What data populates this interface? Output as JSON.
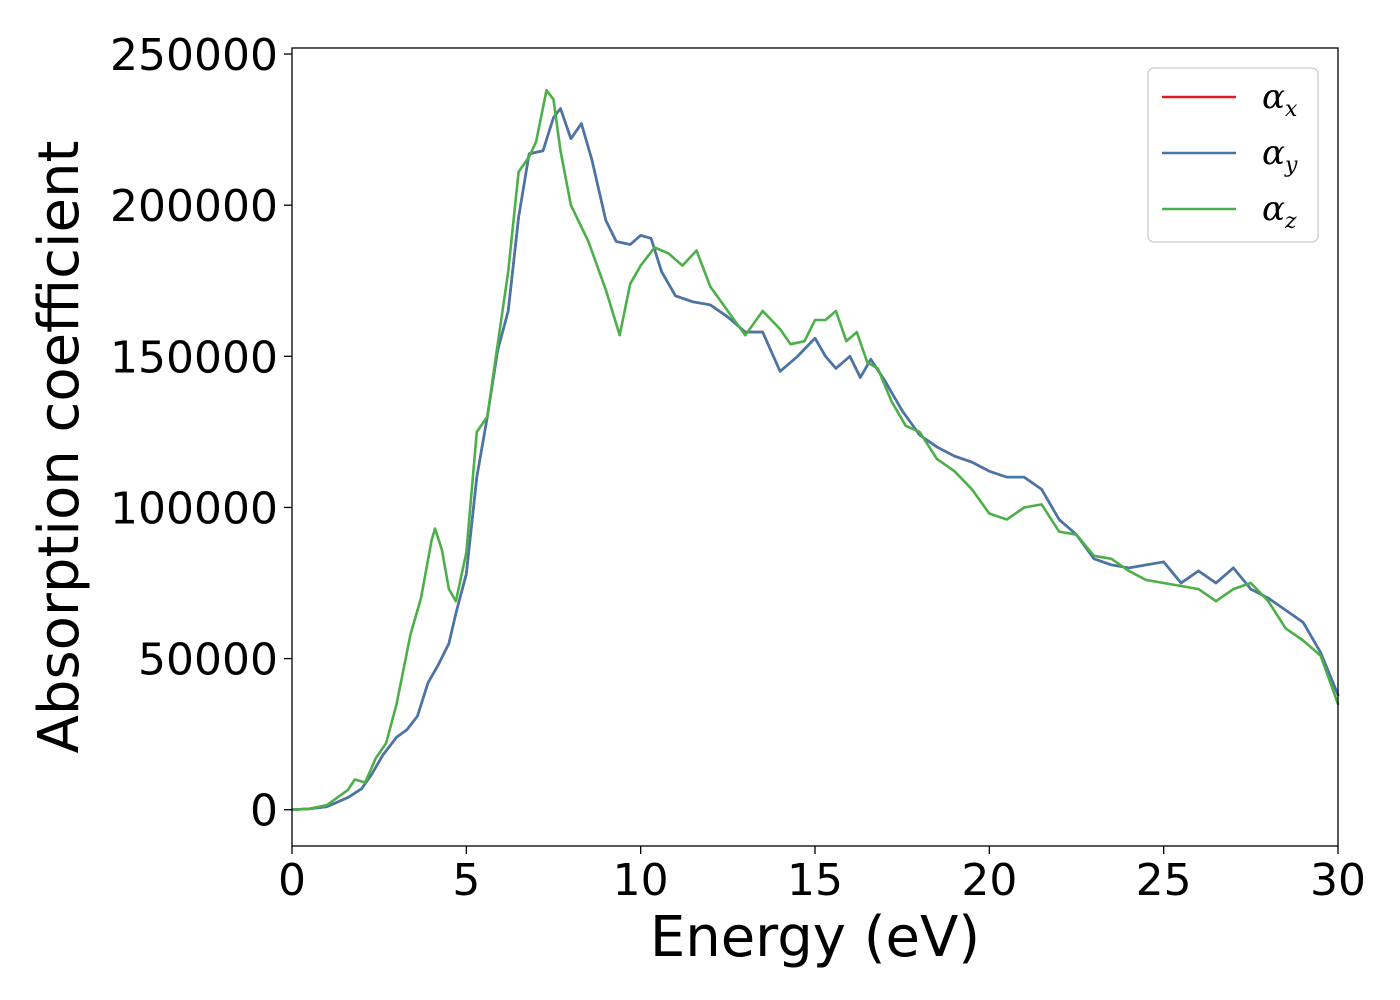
{
  "chart_data": {
    "type": "line",
    "xlabel": "Energy (eV)",
    "ylabel": "Absorption coefficient",
    "xlim": [
      0,
      30
    ],
    "ylim": [
      -12000,
      252000
    ],
    "xticks": [
      0,
      5,
      10,
      15,
      20,
      25,
      30
    ],
    "xtick_labels": [
      "0",
      "5",
      "10",
      "15",
      "20",
      "25",
      "30"
    ],
    "yticks": [
      0,
      50000,
      100000,
      150000,
      200000,
      250000
    ],
    "ytick_labels": [
      "0",
      "50000",
      "100000",
      "150000",
      "200000",
      "250000"
    ],
    "grid": false,
    "legend_position": "top-right",
    "series": [
      {
        "name": "α_x",
        "legend_main": "α",
        "legend_sub": "x",
        "color": "#e41a1c",
        "x": [
          0,
          0.5,
          1.0,
          1.3,
          1.6,
          2.0,
          2.3,
          2.6,
          3.0,
          3.3,
          3.6,
          3.9,
          4.2,
          4.5,
          4.7,
          5.0,
          5.3,
          5.6,
          5.9,
          6.2,
          6.5,
          6.8,
          7.2,
          7.5,
          7.7,
          8.0,
          8.3,
          8.6,
          9.0,
          9.3,
          9.7,
          10.0,
          10.3,
          10.6,
          11.0,
          11.5,
          12.0,
          12.5,
          13.0,
          13.5,
          14.0,
          14.5,
          15.0,
          15.3,
          15.6,
          16.0,
          16.3,
          16.6,
          17.0,
          17.5,
          18.0,
          18.5,
          19.0,
          19.5,
          20.0,
          20.5,
          21.0,
          21.5,
          22.0,
          22.5,
          23.0,
          23.5,
          24.0,
          24.5,
          25.0,
          25.5,
          26.0,
          26.5,
          27.0,
          27.5,
          28.0,
          28.5,
          29.0,
          29.5,
          30.0
        ],
        "y": [
          0,
          300,
          1000,
          2500,
          4000,
          7000,
          12000,
          18000,
          24000,
          26500,
          31000,
          42000,
          48000,
          55000,
          65000,
          78000,
          110000,
          130000,
          152000,
          165000,
          196000,
          217000,
          218000,
          229000,
          232000,
          222000,
          227000,
          215000,
          195000,
          188000,
          187000,
          190000,
          189000,
          178000,
          170000,
          168000,
          167000,
          163000,
          158000,
          158000,
          145000,
          150000,
          156000,
          150000,
          146000,
          150000,
          143000,
          149000,
          142000,
          132000,
          124000,
          120000,
          117000,
          115000,
          112000,
          110000,
          110000,
          106000,
          96000,
          91000,
          83000,
          81000,
          80000,
          81000,
          82000,
          75000,
          79000,
          75000,
          80000,
          73000,
          70000,
          66000,
          62000,
          52000,
          38000
        ]
      },
      {
        "name": "α_y",
        "legend_main": "α",
        "legend_sub": "y",
        "color": "#4477aa",
        "x": [
          0,
          0.5,
          1.0,
          1.3,
          1.6,
          2.0,
          2.3,
          2.6,
          3.0,
          3.3,
          3.6,
          3.9,
          4.2,
          4.5,
          4.7,
          5.0,
          5.3,
          5.6,
          5.9,
          6.2,
          6.5,
          6.8,
          7.2,
          7.5,
          7.7,
          8.0,
          8.3,
          8.6,
          9.0,
          9.3,
          9.7,
          10.0,
          10.3,
          10.6,
          11.0,
          11.5,
          12.0,
          12.5,
          13.0,
          13.5,
          14.0,
          14.5,
          15.0,
          15.3,
          15.6,
          16.0,
          16.3,
          16.6,
          17.0,
          17.5,
          18.0,
          18.5,
          19.0,
          19.5,
          20.0,
          20.5,
          21.0,
          21.5,
          22.0,
          22.5,
          23.0,
          23.5,
          24.0,
          24.5,
          25.0,
          25.5,
          26.0,
          26.5,
          27.0,
          27.5,
          28.0,
          28.5,
          29.0,
          29.5,
          30.0
        ],
        "y": [
          0,
          300,
          1000,
          2500,
          4000,
          7000,
          12000,
          18000,
          24000,
          26500,
          31000,
          42000,
          48000,
          55000,
          65000,
          78000,
          110000,
          130000,
          152000,
          165000,
          196000,
          217000,
          218000,
          229000,
          232000,
          222000,
          227000,
          215000,
          195000,
          188000,
          187000,
          190000,
          189000,
          178000,
          170000,
          168000,
          167000,
          163000,
          158000,
          158000,
          145000,
          150000,
          156000,
          150000,
          146000,
          150000,
          143000,
          149000,
          142000,
          132000,
          124000,
          120000,
          117000,
          115000,
          112000,
          110000,
          110000,
          106000,
          96000,
          91000,
          83000,
          81000,
          80000,
          81000,
          82000,
          75000,
          79000,
          75000,
          80000,
          73000,
          70000,
          66000,
          62000,
          52000,
          38000
        ]
      },
      {
        "name": "α_z",
        "legend_main": "α",
        "legend_sub": "z",
        "color": "#4daf4a",
        "x": [
          0,
          0.5,
          1.0,
          1.3,
          1.6,
          1.8,
          2.1,
          2.4,
          2.7,
          3.0,
          3.4,
          3.7,
          4.0,
          4.1,
          4.3,
          4.5,
          4.7,
          5.0,
          5.3,
          5.6,
          5.9,
          6.2,
          6.5,
          6.8,
          7.0,
          7.3,
          7.5,
          7.7,
          8.0,
          8.5,
          9.0,
          9.4,
          9.7,
          10.0,
          10.4,
          10.8,
          11.2,
          11.6,
          12.0,
          12.5,
          13.0,
          13.5,
          14.0,
          14.3,
          14.7,
          15.0,
          15.3,
          15.6,
          15.9,
          16.2,
          16.5,
          16.8,
          17.2,
          17.6,
          18.0,
          18.5,
          19.0,
          19.5,
          20.0,
          20.5,
          21.0,
          21.5,
          22.0,
          22.5,
          23.0,
          23.5,
          24.0,
          24.5,
          25.0,
          25.5,
          26.0,
          26.5,
          27.0,
          27.5,
          28.0,
          28.5,
          29.0,
          29.5,
          30.0
        ],
        "y": [
          0,
          300,
          1500,
          4000,
          6500,
          10000,
          9000,
          17000,
          22000,
          35000,
          58000,
          70000,
          89000,
          93000,
          86000,
          73000,
          69000,
          85000,
          125000,
          130000,
          154000,
          178000,
          211000,
          216000,
          221000,
          238000,
          235000,
          218000,
          200000,
          188000,
          172000,
          157000,
          174000,
          180000,
          186000,
          184000,
          180000,
          185000,
          173000,
          165000,
          157000,
          165000,
          159000,
          154000,
          155000,
          162000,
          162000,
          165000,
          155000,
          158000,
          148000,
          146000,
          135000,
          127000,
          125000,
          116000,
          112000,
          106000,
          98000,
          96000,
          100000,
          101000,
          92000,
          91000,
          84000,
          83000,
          79000,
          76000,
          75000,
          74000,
          73000,
          69000,
          73000,
          75000,
          69000,
          60000,
          56000,
          51000,
          35000
        ]
      }
    ]
  }
}
